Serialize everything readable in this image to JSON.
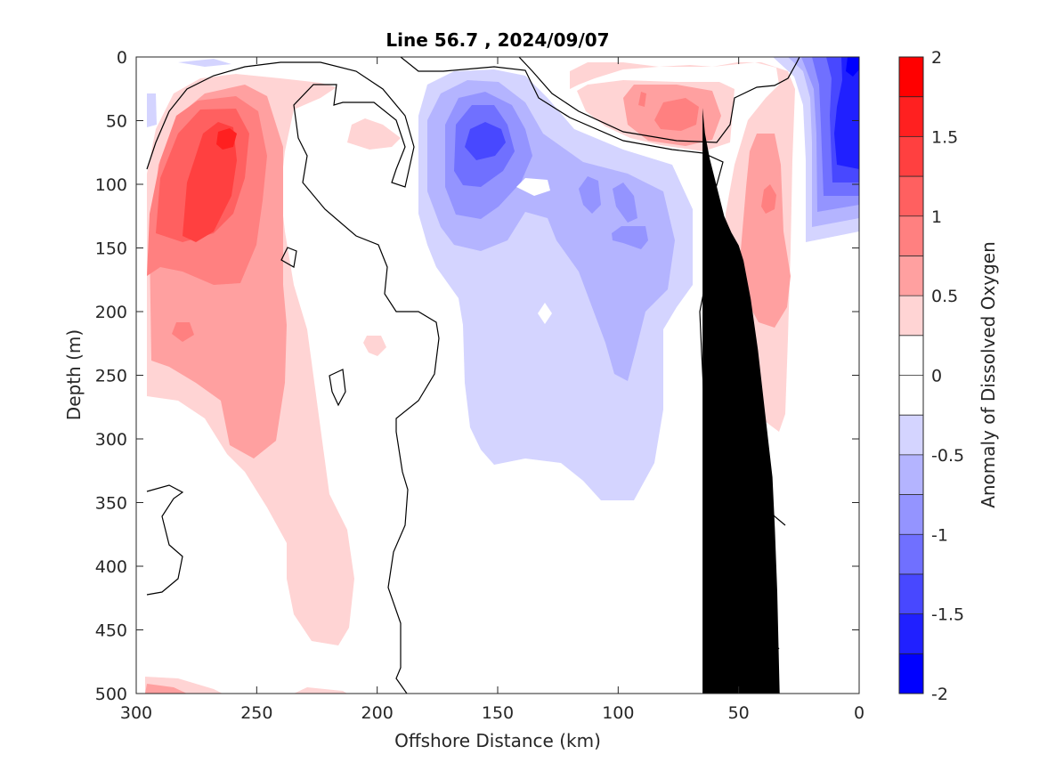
{
  "chart_data": {
    "type": "heatmap",
    "title": "Line 56.7 , 2024/09/07",
    "xlabel": "Offshore Distance (km)",
    "ylabel": "Depth (m)",
    "xlim": [
      300,
      0
    ],
    "ylim": [
      0,
      500
    ],
    "x_reversed": true,
    "y_reversed": true,
    "x_ticks": [
      300,
      250,
      200,
      150,
      100,
      50,
      0
    ],
    "y_ticks": [
      0,
      50,
      100,
      150,
      200,
      250,
      300,
      350,
      400,
      450,
      500
    ],
    "colorbar": {
      "label": "Anomaly of Dissolved Oxygen",
      "range": [
        -2,
        2
      ],
      "ticks": [
        {
          "value": 2,
          "label": "2"
        },
        {
          "value": 1.5,
          "label": "1.5"
        },
        {
          "value": 1,
          "label": "1"
        },
        {
          "value": 0.5,
          "label": "0.5"
        },
        {
          "value": 0,
          "label": "0"
        },
        {
          "value": -0.5,
          "label": "-0.5"
        },
        {
          "value": -1,
          "label": "-1"
        },
        {
          "value": -1.5,
          "label": "-1.5"
        },
        {
          "value": -2,
          "label": "-2"
        }
      ],
      "levels": [
        {
          "from": 1.75,
          "to": 2.0,
          "color": "#ff0000"
        },
        {
          "from": 1.5,
          "to": 1.75,
          "color": "#ff2020"
        },
        {
          "from": 1.25,
          "to": 1.5,
          "color": "#ff4040"
        },
        {
          "from": 1.0,
          "to": 1.25,
          "color": "#ff6060"
        },
        {
          "from": 0.75,
          "to": 1.0,
          "color": "#ff8080"
        },
        {
          "from": 0.5,
          "to": 0.75,
          "color": "#ffa0a0"
        },
        {
          "from": 0.25,
          "to": 0.5,
          "color": "#ffd4d4"
        },
        {
          "from": 0.0,
          "to": 0.25,
          "color": "#ffffff"
        },
        {
          "from": -0.25,
          "to": 0.0,
          "color": "#ffffff"
        },
        {
          "from": -0.5,
          "to": -0.25,
          "color": "#d4d4ff"
        },
        {
          "from": -0.75,
          "to": -0.5,
          "color": "#b4b4ff"
        },
        {
          "from": -1.0,
          "to": -0.75,
          "color": "#9494ff"
        },
        {
          "from": -1.25,
          "to": -1.0,
          "color": "#7070ff"
        },
        {
          "from": -1.5,
          "to": -1.25,
          "color": "#4848ff"
        },
        {
          "from": -1.75,
          "to": -1.5,
          "color": "#2020ff"
        },
        {
          "from": -2.0,
          "to": -1.75,
          "color": "#0000ff"
        }
      ]
    },
    "bathymetry": {
      "color": "#000000",
      "points": [
        [
          33,
          500
        ],
        [
          34,
          420
        ],
        [
          35,
          370
        ],
        [
          36,
          330
        ],
        [
          39,
          280
        ],
        [
          42,
          230
        ],
        [
          45,
          190
        ],
        [
          48,
          160
        ],
        [
          50,
          148
        ],
        [
          53,
          138
        ],
        [
          56,
          125
        ],
        [
          58,
          110
        ],
        [
          60,
          95
        ],
        [
          62,
          80
        ],
        [
          64,
          60
        ],
        [
          65,
          40
        ],
        [
          65,
          500
        ]
      ]
    },
    "features": [
      {
        "kind": "positive_anomaly",
        "approx_center_km": 265,
        "approx_center_depth_m": 70,
        "peak": 1.3
      },
      {
        "kind": "negative_anomaly",
        "approx_center_km": 155,
        "approx_center_depth_m": 60,
        "peak": -1.4
      },
      {
        "kind": "negative_anomaly",
        "approx_center_km": 5,
        "approx_center_depth_m": 50,
        "peak": -1.8
      },
      {
        "kind": "positive_anomaly",
        "approx_center_km": 77,
        "approx_center_depth_m": 50,
        "peak": 0.9
      },
      {
        "kind": "positive_anomaly",
        "approx_center_km": 37,
        "approx_center_depth_m": 110,
        "peak": 0.8
      }
    ]
  }
}
